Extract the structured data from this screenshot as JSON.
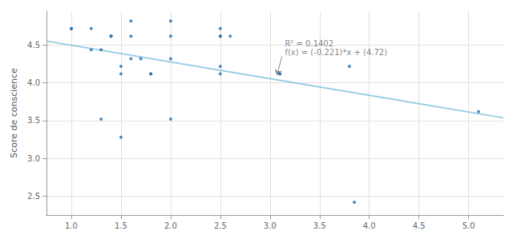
{
  "chart_data": {
    "type": "scatter",
    "y_label": "Score de conscience",
    "series": [
      {
        "type": "scatter",
        "color": "#2171b5",
        "marker": "circle",
        "x": [
          1.0,
          1.0,
          1.2,
          1.2,
          1.3,
          1.3,
          1.4,
          1.4,
          1.5,
          1.5,
          1.5,
          1.6,
          1.6,
          1.6,
          1.7,
          1.8,
          1.8,
          2.0,
          2.0,
          2.0,
          2.0,
          2.5,
          2.5,
          2.5,
          2.5,
          2.5,
          2.6,
          3.1,
          3.1,
          3.8,
          3.85,
          5.1
        ],
        "values": [
          4.72,
          4.72,
          4.44,
          4.72,
          4.44,
          3.52,
          4.62,
          4.62,
          3.28,
          4.22,
          4.12,
          4.82,
          4.62,
          4.32,
          4.32,
          4.12,
          4.12,
          4.82,
          4.62,
          4.32,
          3.52,
          4.72,
          4.62,
          4.62,
          4.22,
          4.12,
          4.62,
          4.12,
          4.12,
          4.22,
          2.42,
          3.62
        ]
      },
      {
        "type": "line",
        "color": "#7abcd6",
        "line_style": "solid",
        "x": [
          0.75,
          5.35
        ],
        "values": [
          4.55425,
          3.53765
        ]
      }
    ],
    "annotations": [
      {
        "text": "R² = 0.1402",
        "x": 3.15,
        "y": 4.52
      },
      {
        "text": "f(x) = (-0.221)*x + (4.72)",
        "x": 3.15,
        "y": 4.4
      }
    ],
    "arrows": [
      {
        "from_x": 3.12,
        "from_y": 4.35,
        "to_x": 3.07,
        "to_y": 4.1
      }
    ],
    "xlim": [
      0.75,
      5.35
    ],
    "ylim": [
      2.25,
      4.95
    ],
    "xticks": [
      {
        "value": 1,
        "label": "1.0"
      },
      1.5,
      {
        "value": 2,
        "label": "2.0"
      },
      2.5,
      {
        "value": 3,
        "label": "3.0"
      },
      3.5,
      {
        "value": 4,
        "label": "4.0"
      },
      4.5,
      {
        "value": 5,
        "label": "5.0"
      }
    ],
    "yticks": [
      2.5,
      {
        "value": 3,
        "label": "3.0"
      },
      3.5,
      {
        "value": 4,
        "label": "4.0"
      },
      4.5
    ],
    "grid": true
  }
}
